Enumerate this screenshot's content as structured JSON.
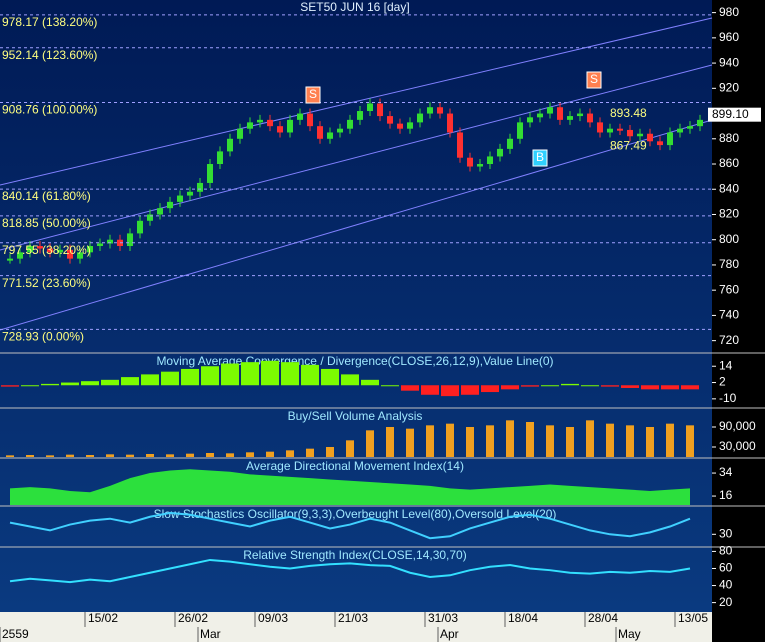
{
  "chart_data": [
    {
      "type": "candle",
      "title": "SET50 JUN 16  [day]",
      "categories": [
        null,
        null,
        null,
        null,
        null,
        null,
        null,
        null,
        "15/02",
        null,
        null,
        null,
        null,
        null,
        null,
        null,
        null,
        "26/02",
        null,
        null,
        null,
        null,
        null,
        null,
        null,
        "09/03",
        null,
        null,
        null,
        null,
        null,
        null,
        null,
        "21/03",
        null,
        null,
        null,
        null,
        null,
        null,
        null,
        null,
        "31/03",
        null,
        null,
        null,
        null,
        null,
        null,
        null,
        "18/04",
        null,
        null,
        null,
        null,
        null,
        null,
        null,
        "28/04",
        null,
        null,
        null,
        null,
        null,
        null,
        null,
        null,
        "13/05",
        null,
        null
      ],
      "values": [
        785,
        790,
        795,
        793,
        790,
        792,
        785,
        790,
        795,
        797,
        800,
        795,
        805,
        815,
        820,
        825,
        830,
        835,
        838,
        845,
        860,
        870,
        880,
        888,
        893,
        895,
        890,
        885,
        895,
        900,
        890,
        880,
        885,
        888,
        895,
        902,
        908,
        898,
        892,
        888,
        893,
        900,
        905,
        900,
        885,
        865,
        858,
        860,
        866,
        872,
        880,
        893,
        897,
        900,
        905,
        895,
        898,
        900,
        893,
        885,
        888,
        887,
        882,
        884,
        878,
        875,
        885,
        888,
        890,
        895
      ],
      "up_color": "#33dd33",
      "down_color": "#ff3030",
      "ylim": [
        711,
        990
      ],
      "yticks": [
        720,
        740,
        760,
        780,
        800,
        820,
        840,
        860,
        880,
        900,
        920,
        940,
        960,
        980
      ],
      "fib_levels": [
        {
          "value": 978.17,
          "label": "978.17 (138.20%)"
        },
        {
          "value": 952.14,
          "label": "952.14 (123.60%)"
        },
        {
          "value": 908.76,
          "label": "908.76 (100.00%)"
        },
        {
          "value": 840.14,
          "label": "840.14 (61.80%)"
        },
        {
          "value": 818.85,
          "label": "818.85 (50.00%)"
        },
        {
          "value": 797.55,
          "label": "797.55 (38.20%)"
        },
        {
          "value": 771.52,
          "label": "771.52 (23.60%)"
        },
        {
          "value": 728.93,
          "label": "728.93 (0.00%)"
        }
      ],
      "price_labels": [
        893.48,
        867.49
      ],
      "last_price": {
        "value": 899.1,
        "label": "899.10"
      },
      "signals": [
        "S",
        "B",
        "S"
      ],
      "periods": [
        "2559",
        "Mar",
        "Apr",
        "May"
      ]
    },
    {
      "type": "histogram",
      "title": "Moving Average Convergence / Divergence(CLOSE,26,12,9),Value Line(0)",
      "values": [
        -1,
        0,
        1,
        2,
        3,
        4,
        6,
        8,
        10,
        12,
        14,
        16,
        17,
        18,
        17,
        15,
        12,
        8,
        4,
        0,
        -4,
        -7,
        -8,
        -7,
        -5,
        -3,
        -1,
        0,
        1,
        0,
        -1,
        -2,
        -3,
        -3,
        -3
      ],
      "color": "#7cfc00",
      "negative_color": "#ff2020",
      "ylim": [
        -16,
        23
      ],
      "yticks": [
        14,
        2,
        -10
      ]
    },
    {
      "type": "bar",
      "title": "Buy/Sell Volume Analysis",
      "values": [
        5000,
        6000,
        5000,
        7000,
        6000,
        8000,
        7000,
        9000,
        8000,
        10000,
        12000,
        11000,
        14000,
        16000,
        20000,
        25000,
        30000,
        50000,
        80000,
        90000,
        85000,
        95000,
        100000,
        90000,
        95000,
        110000,
        105000,
        95000,
        90000,
        110000,
        100000,
        95000,
        90000,
        100000,
        95000
      ],
      "color": "#f0a020",
      "ylim": [
        0,
        144000
      ],
      "yticks": [
        {
          "value": 90000,
          "label": "90,000"
        },
        {
          "value": 30000,
          "label": "30,000"
        }
      ]
    },
    {
      "type": "area",
      "title": "Average Directional Movement Index(14)",
      "values": [
        22,
        23,
        22,
        20,
        19,
        24,
        30,
        34,
        36,
        37,
        36,
        35,
        33,
        32,
        31,
        30,
        29,
        28,
        27,
        26,
        25,
        24,
        22,
        21,
        22,
        23,
        24,
        25,
        24,
        23,
        22,
        21,
        20,
        21,
        22
      ],
      "color": "#33ff33",
      "ylim": [
        9,
        45
      ],
      "yticks": [
        34,
        16
      ]
    },
    {
      "type": "line",
      "title": "Slow Stochastics Oscillator(9,3,3),Overbeught Level(80),Oversold Level(20)",
      "values": [
        60,
        50,
        40,
        55,
        65,
        70,
        60,
        75,
        85,
        80,
        70,
        60,
        50,
        65,
        75,
        60,
        45,
        55,
        70,
        60,
        40,
        20,
        25,
        45,
        60,
        75,
        80,
        70,
        55,
        40,
        30,
        25,
        35,
        50,
        70
      ],
      "color": "#40d0ff",
      "ylim": [
        0,
        100
      ],
      "yticks": [
        30
      ]
    },
    {
      "type": "line",
      "title": "Relative Strength Index(CLOSE,14,30,70)",
      "values": [
        45,
        48,
        46,
        44,
        47,
        45,
        50,
        55,
        60,
        65,
        70,
        68,
        65,
        62,
        60,
        63,
        65,
        66,
        64,
        63,
        55,
        50,
        52,
        58,
        62,
        64,
        60,
        58,
        55,
        54,
        56,
        55,
        57,
        56,
        60
      ],
      "color": "#33e0ff",
      "ylim": [
        9,
        84
      ],
      "yticks": [
        80,
        60,
        40,
        20
      ]
    }
  ]
}
